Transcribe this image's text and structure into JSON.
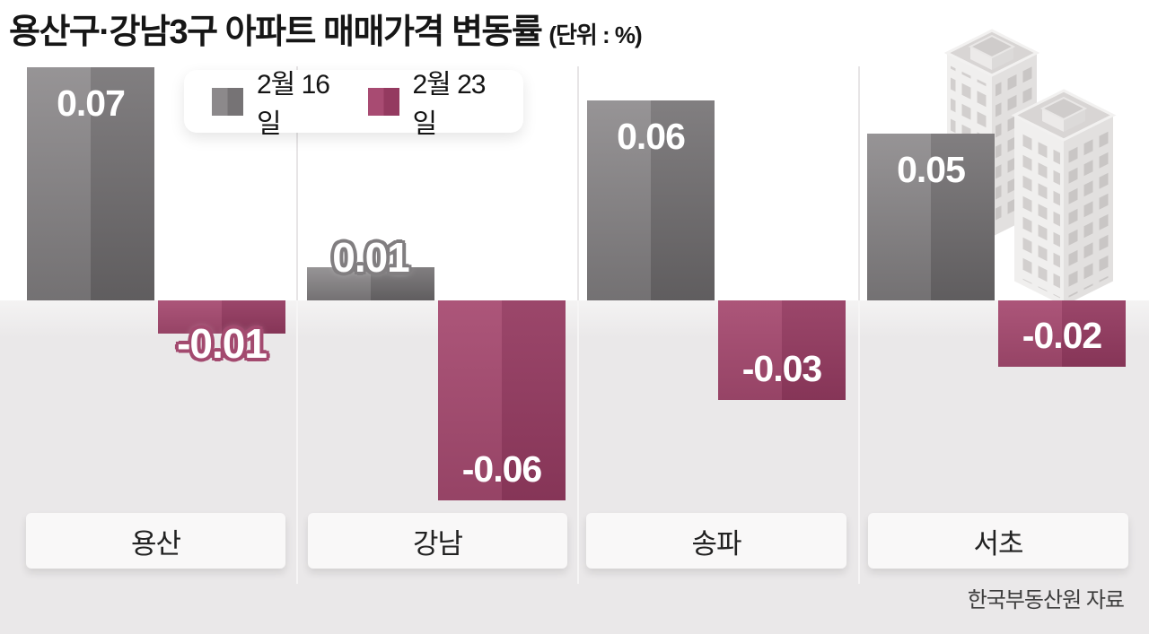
{
  "title": {
    "main": "용산구·강남3구 아파트 매매가격 변동률",
    "unit": "(단위 : %)"
  },
  "legend": {
    "items": [
      {
        "label": "2월 16일",
        "color": "#8c898b"
      },
      {
        "label": "2월 23일",
        "color": "#a84b72"
      }
    ]
  },
  "source": "한국부동산원 자료",
  "colors": {
    "bar_gray_left": "#8b888a",
    "bar_gray_right": "#737072",
    "bar_pink_left": "#a74b71",
    "bar_pink_right": "#953b61",
    "floor_background": "#eae8e9",
    "category_box": "#f9f8f8"
  },
  "chart_data": {
    "type": "bar",
    "title": "용산구·강남3구 아파트 매매가격 변동률",
    "unit": "%",
    "categories": [
      "용산",
      "강남",
      "송파",
      "서초"
    ],
    "series": [
      {
        "name": "2월 16일",
        "values": [
          0.07,
          0.01,
          0.06,
          0.05
        ],
        "labels": [
          "0.07",
          "0.01",
          "0.06",
          "0.05"
        ]
      },
      {
        "name": "2월 23일",
        "values": [
          -0.01,
          -0.06,
          -0.03,
          -0.02
        ],
        "labels": [
          "-0.01",
          "-0.06",
          "-0.03",
          "-0.02"
        ]
      }
    ],
    "baseline": 0,
    "ylim": [
      -0.07,
      0.08
    ],
    "grid": false,
    "legend_position": "top-left",
    "value_labels": "on"
  }
}
